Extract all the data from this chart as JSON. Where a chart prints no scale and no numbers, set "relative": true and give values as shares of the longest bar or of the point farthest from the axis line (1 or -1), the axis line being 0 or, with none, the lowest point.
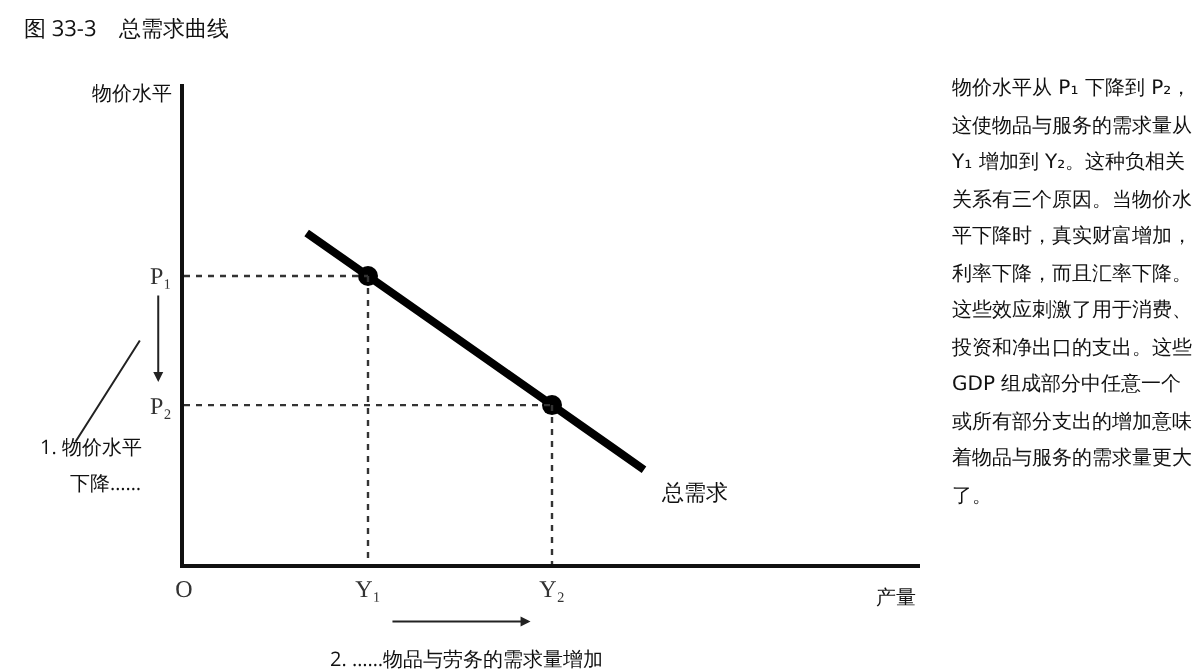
{
  "chart_data": {
    "type": "line",
    "relative": true,
    "title": "图 33-3　总需求曲线",
    "xlabel": "产量",
    "categories": [
      "O",
      null,
      null,
      null,
      null,
      null,
      "Y₁",
      null,
      null,
      null,
      null,
      null,
      "Y₂",
      null,
      null,
      null,
      null,
      null,
      null,
      null,
      null,
      null,
      null,
      null,
      null
    ],
    "grid": false,
    "series": [
      {
        "name": "总需求",
        "color": "#000000",
        "values": [
          null,
          null,
          null,
          null,
          1.0,
          0.935,
          0.87,
          0.805,
          0.74,
          0.675,
          0.61,
          0.545,
          0.48,
          0.415,
          0.35,
          0.285,
          null,
          null,
          null,
          null,
          null,
          null,
          null,
          null,
          null
        ],
        "marker": "none",
        "line_style": "solid"
      },
      {
        "type": "scatter",
        "color": "#000000",
        "x": [
          "Y₁",
          "Y₂"
        ],
        "values": [
          0.87,
          0.48
        ],
        "marker": "circle"
      },
      {
        "color": "#333333",
        "x": [
          "O",
          "Y₁"
        ],
        "values": [
          0.87,
          0.87
        ],
        "marker": "none",
        "line_style": "dotted"
      },
      {
        "color": "#333333",
        "x": [
          "Y₁",
          "Y₁"
        ],
        "values": [
          0.87,
          0
        ],
        "marker": "none",
        "line_style": "dotted"
      },
      {
        "color": "#333333",
        "x": [
          "O",
          "Y₂"
        ],
        "values": [
          0.48,
          0.48
        ],
        "marker": "none",
        "line_style": "dotted"
      },
      {
        "color": "#333333",
        "x": [
          "Y₂",
          "Y₂"
        ],
        "values": [
          0.48,
          0
        ],
        "marker": "none",
        "line_style": "dotted"
      }
    ],
    "annotations": [
      "物价水平",
      "P₁",
      "P₂",
      "1. 物价水平",
      "下降……",
      "2. ……物品与劳务的需求量增加",
      "物价水平从 P₁ 下降到 P₂，这使物品与服务的需求量从 Y₁ 增加到 Y₂。这种负相关关系有三个原因。当物价水平下降时，真实财富增加，利率下降，而且汇率下降。这些效应刺激了用于消费、投资和净出口的支出。这些 GDP 组成部分中任意一个或所有部分支出的增加意味着物品与服务的需求量更大了。"
    ]
  }
}
